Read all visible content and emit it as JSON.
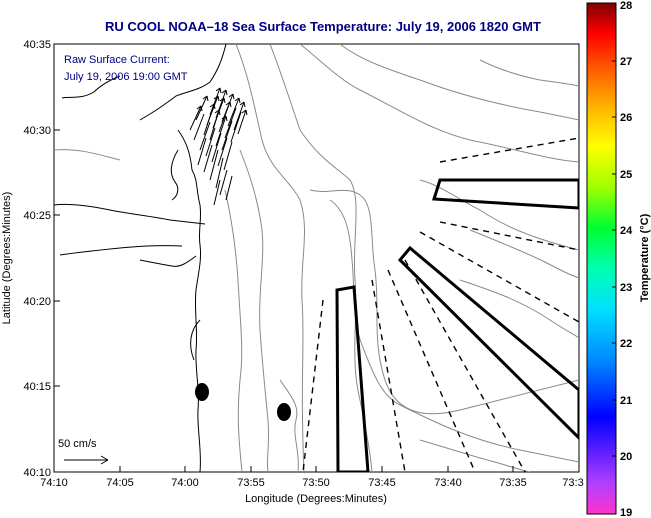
{
  "title": "RU COOL  NOAA–18  Sea Surface Temperature:  July 19, 2006 1820 GMT",
  "annotation": {
    "line1": "Raw Surface Current:",
    "line2": "July 19, 2006 19:00 GMT"
  },
  "scale_label": "50 cm/s",
  "axes": {
    "xlabel": "Longitude (Degrees:Minutes)",
    "ylabel": "Latitude (Degrees:Minutes)",
    "x_ticks": [
      "74:10",
      "74:05",
      "74:00",
      "73:55",
      "73:50",
      "73:45",
      "73:40",
      "73:35",
      "73:3"
    ],
    "y_ticks": [
      "40:35",
      "40:30",
      "40:25",
      "40:20",
      "40:15",
      "40:10"
    ]
  },
  "colorbar": {
    "label": "Temperature (°C)",
    "ticks": [
      "28",
      "27",
      "26",
      "25",
      "24",
      "23",
      "22",
      "21",
      "20",
      "19"
    ],
    "min": 19,
    "max": 28
  },
  "colors": {
    "title": "#000080",
    "annotation": "#000080",
    "axes": "#000000",
    "contour": "#888888",
    "coast": "#000000"
  }
}
